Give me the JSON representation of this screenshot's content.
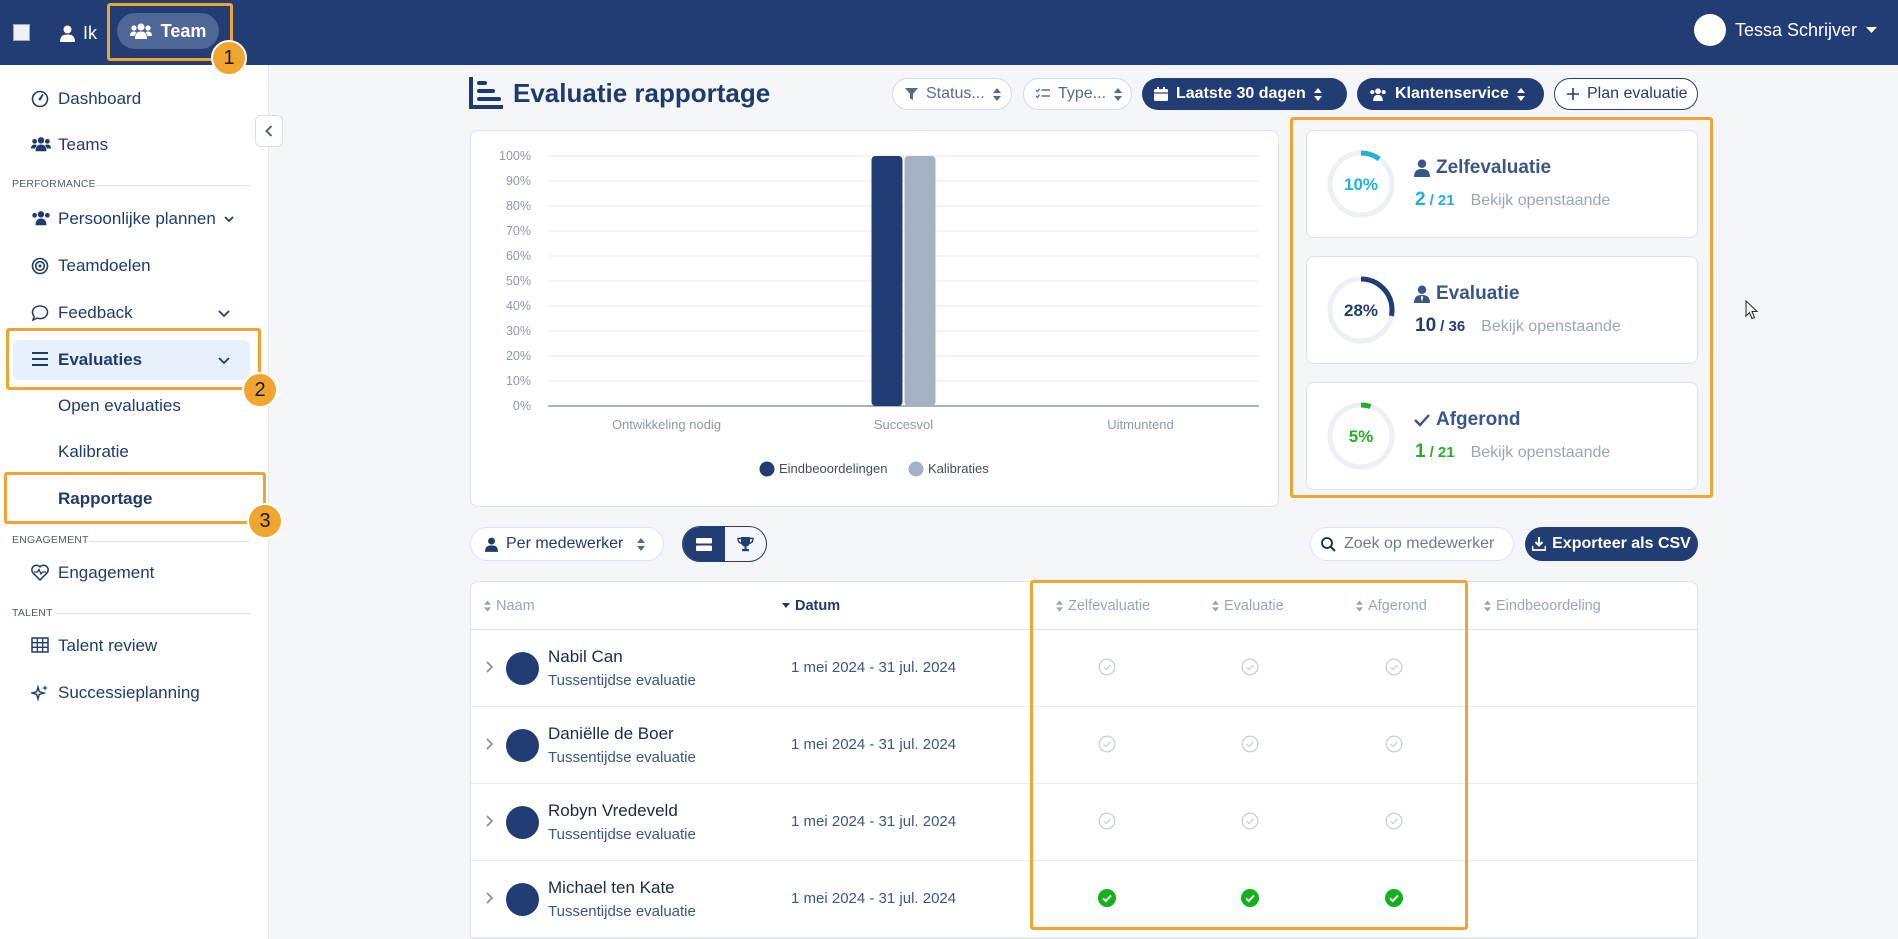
{
  "topbar": {
    "ik_label": "Ik",
    "team_label": "Team",
    "user_name": "Tessa Schrijver"
  },
  "sidebar": {
    "dashboard": "Dashboard",
    "teams": "Teams",
    "section_performance": "PERFORMANCE",
    "persoonlijke_plannen": "Persoonlijke plannen",
    "teamdoelen": "Teamdoelen",
    "feedback": "Feedback",
    "evaluaties": "Evaluaties",
    "open_evaluaties": "Open evaluaties",
    "kalibratie": "Kalibratie",
    "rapportage": "Rapportage",
    "section_engagement": "ENGAGEMENT",
    "engagement": "Engagement",
    "section_talent": "TALENT",
    "talent_review": "Talent review",
    "successieplanning": "Successieplanning"
  },
  "badges": [
    "1",
    "2",
    "3"
  ],
  "header": {
    "title": "Evaluatie rapportage",
    "filter_status": "Status...",
    "filter_type": "Type...",
    "period": "Laatste 30 dagen",
    "team": "Klantenservice",
    "plan_button": "Plan evaluatie"
  },
  "chart_data": {
    "type": "bar",
    "categories": [
      "Ontwikkeling nodig",
      "Succesvol",
      "Uitmuntend"
    ],
    "series": [
      {
        "name": "Eindbeoordelingen",
        "values": [
          0,
          100,
          0
        ],
        "color": "#213d74"
      },
      {
        "name": "Kalibraties",
        "values": [
          0,
          100,
          0
        ],
        "color": "#a3b1c2"
      }
    ],
    "y_ticks": [
      "0%",
      "10%",
      "20%",
      "30%",
      "40%",
      "50%",
      "60%",
      "70%",
      "80%",
      "90%",
      "100%"
    ],
    "ylim": [
      0,
      100
    ],
    "grid": true,
    "legend": "bottom"
  },
  "stats": [
    {
      "title": "Zelfevaluatie",
      "percent_label": "10%",
      "fraction": 0.1,
      "done": "2",
      "total": "/ 21",
      "link": "Bekijk openstaande",
      "color": "#1fb1d9",
      "icon": "person-icon"
    },
    {
      "title": "Evaluatie",
      "percent_label": "28%",
      "fraction": 0.28,
      "done": "10",
      "total": "/ 36",
      "link": "Bekijk openstaande",
      "color": "#213d74",
      "icon": "person-tie-icon"
    },
    {
      "title": "Afgerond",
      "percent_label": "5%",
      "fraction": 0.05,
      "done": "1",
      "total": "/ 21",
      "link": "Bekijk openstaande",
      "color": "#22b02a",
      "icon": "check-icon"
    }
  ],
  "toolbar": {
    "group_by": "Per medewerker",
    "search_placeholder": "Zoek op medewerker",
    "export_label": "Exporteer als CSV"
  },
  "table": {
    "headers": {
      "naam": "Naam",
      "datum": "Datum",
      "zelfevaluatie": "Zelfevaluatie",
      "evaluatie": "Evaluatie",
      "afgerond": "Afgerond",
      "eindbeoordeling": "Eindbeoordeling"
    },
    "rows": [
      {
        "name": "Nabil Can",
        "type": "Tussentijdse evaluatie",
        "date": "1 mei 2024 - 31 jul. 2024",
        "zelf": false,
        "eval": false,
        "afg": false
      },
      {
        "name": "Daniëlle de Boer",
        "type": "Tussentijdse evaluatie",
        "date": "1 mei 2024 - 31 jul. 2024",
        "zelf": false,
        "eval": false,
        "afg": false
      },
      {
        "name": "Robyn Vredeveld",
        "type": "Tussentijdse evaluatie",
        "date": "1 mei 2024 - 31 jul. 2024",
        "zelf": false,
        "eval": false,
        "afg": false
      },
      {
        "name": "Michael ten Kate",
        "type": "Tussentijdse evaluatie",
        "date": "1 mei 2024 - 31 jul. 2024",
        "zelf": true,
        "eval": true,
        "afg": true
      }
    ]
  }
}
